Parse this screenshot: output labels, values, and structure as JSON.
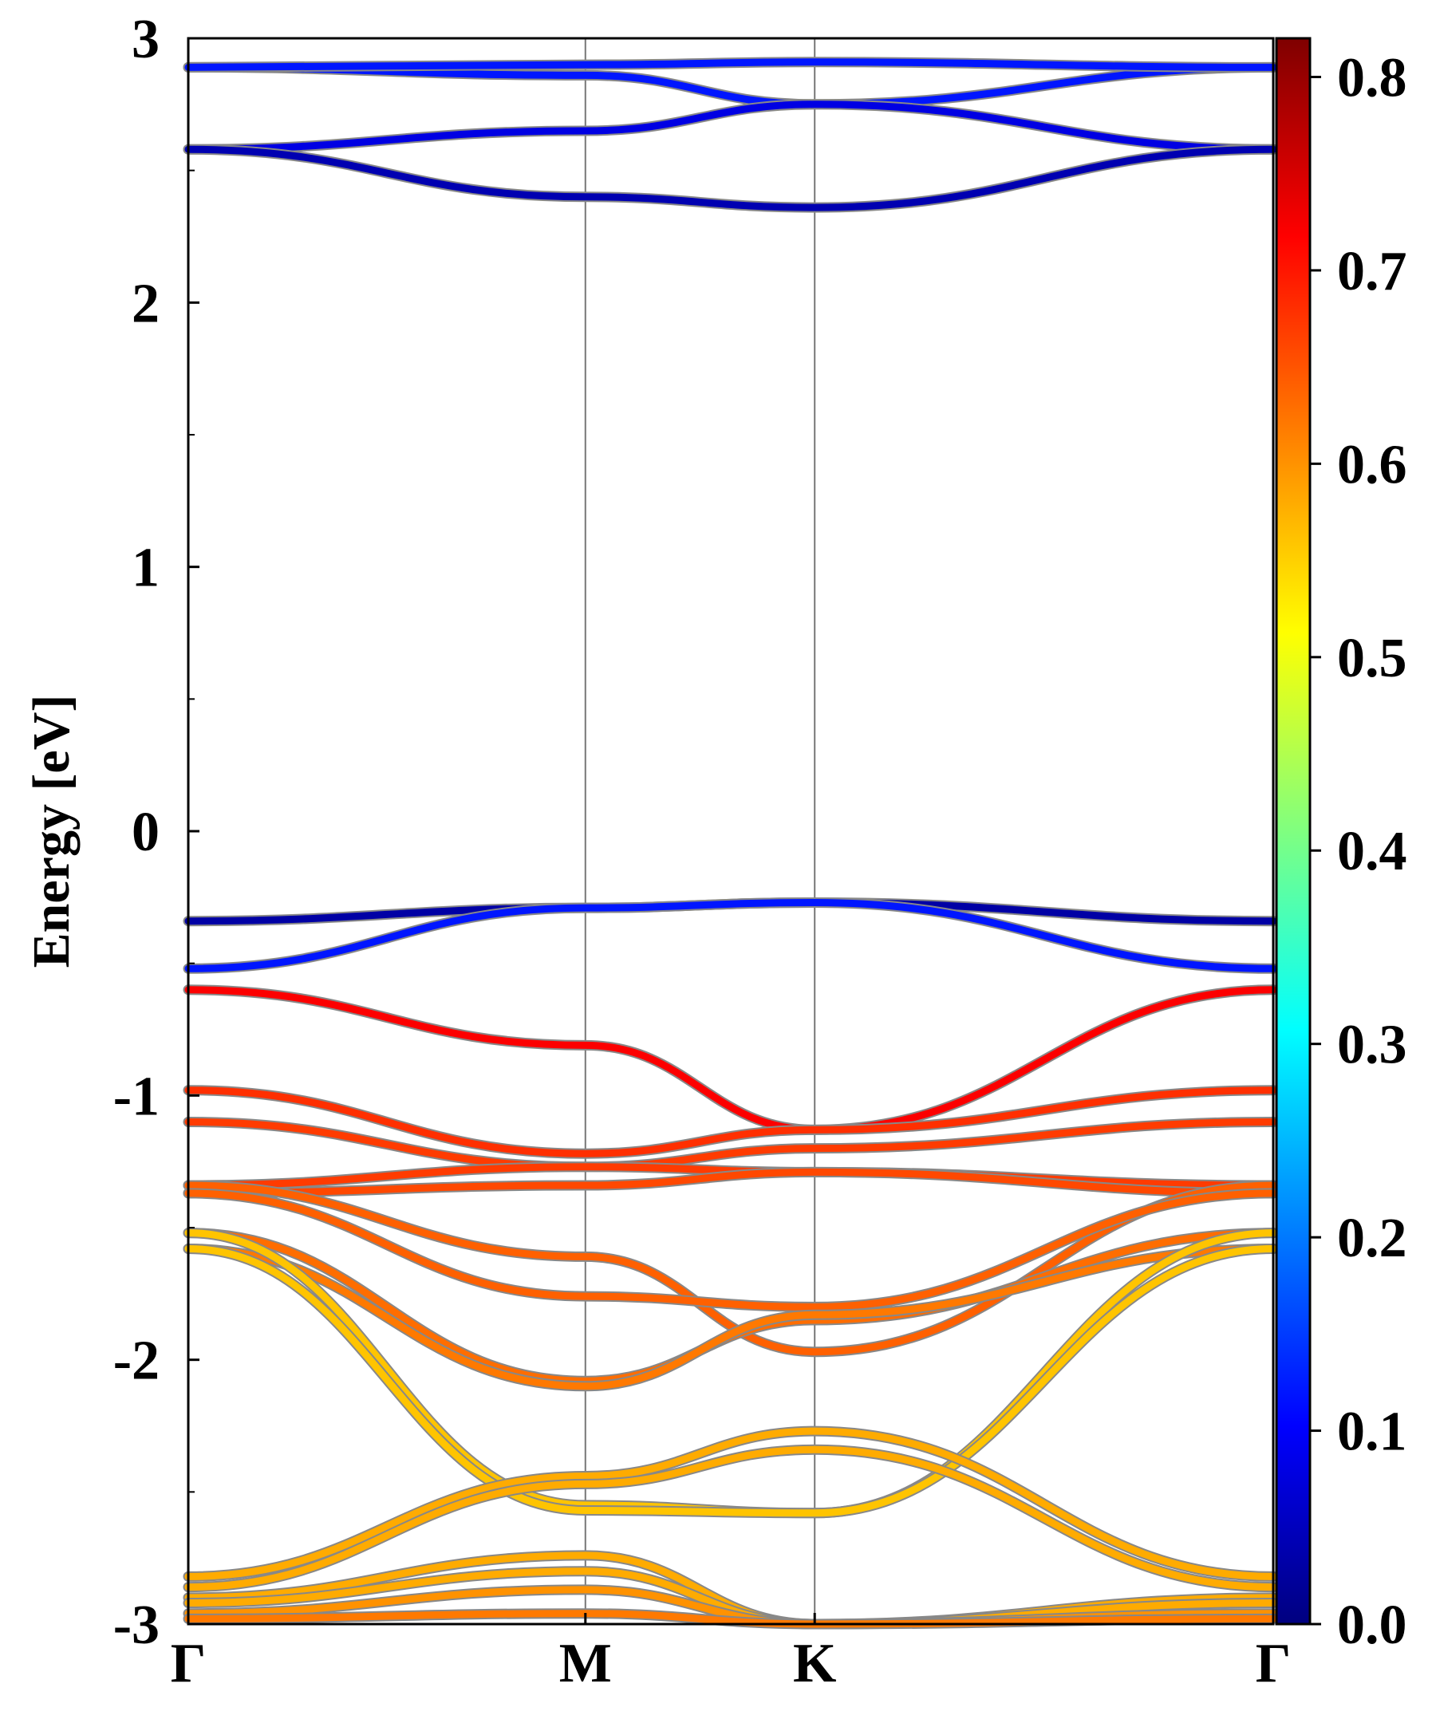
{
  "chart_data": {
    "type": "line",
    "title": "",
    "xlabel": "",
    "ylabel": "Energy [eV]",
    "ylim": [
      -3,
      3
    ],
    "y_ticks": [
      "3",
      "2",
      "1",
      "0",
      "-1",
      "-2",
      "-3"
    ],
    "y_tick_values": [
      3,
      2,
      1,
      0,
      -1,
      -2,
      -3
    ],
    "k_points": [
      {
        "label": "Γ",
        "position": 0.0
      },
      {
        "label": "M",
        "position": 1.0
      },
      {
        "label": "K",
        "position": 1.5774
      },
      {
        "label": "Γ",
        "position": 2.7321
      }
    ],
    "colorbar": {
      "range": [
        0.0,
        0.82
      ],
      "ticks": [
        "0.8",
        "0.7",
        "0.6",
        "0.5",
        "0.4",
        "0.3",
        "0.2",
        "0.1",
        "0.0"
      ],
      "tick_values": [
        0.8,
        0.7,
        0.6,
        0.5,
        0.4,
        0.3,
        0.2,
        0.1,
        0.0
      ],
      "colormap": "jet"
    },
    "series": [
      {
        "k": [
          0,
          1,
          1.5774,
          2.7321
        ],
        "energy": [
          2.89,
          2.86,
          2.75,
          2.89
        ],
        "weight": 0.12
      },
      {
        "k": [
          0,
          1,
          1.5774,
          2.7321
        ],
        "energy": [
          2.89,
          2.9,
          2.91,
          2.89
        ],
        "weight": 0.12
      },
      {
        "k": [
          0,
          1,
          1.5774,
          2.7321
        ],
        "energy": [
          2.58,
          2.65,
          2.75,
          2.58
        ],
        "weight": 0.08
      },
      {
        "k": [
          0,
          1,
          1.5774,
          2.7321
        ],
        "energy": [
          2.58,
          2.4,
          2.36,
          2.58
        ],
        "weight": 0.04
      },
      {
        "k": [
          0,
          1,
          1.5774,
          2.7321
        ],
        "energy": [
          -0.34,
          -0.29,
          -0.27,
          -0.34
        ],
        "weight": 0.03
      },
      {
        "k": [
          0,
          1,
          1.5774,
          2.7321
        ],
        "energy": [
          -0.52,
          -0.29,
          -0.27,
          -0.52
        ],
        "weight": 0.12
      },
      {
        "k": [
          0,
          1,
          1.5774,
          2.7321
        ],
        "energy": [
          -0.6,
          -0.81,
          -1.13,
          -0.6
        ],
        "weight": 0.72
      },
      {
        "k": [
          0,
          1,
          1.5774,
          2.7321
        ],
        "energy": [
          -0.98,
          -1.22,
          -1.13,
          -0.98
        ],
        "weight": 0.68
      },
      {
        "k": [
          0,
          1,
          1.5774,
          2.7321
        ],
        "energy": [
          -1.1,
          -1.27,
          -1.2,
          -1.1
        ],
        "weight": 0.67
      },
      {
        "k": [
          0,
          1,
          1.5774,
          2.7321
        ],
        "energy": [
          -1.34,
          -1.27,
          -1.29,
          -1.34
        ],
        "weight": 0.67
      },
      {
        "k": [
          0,
          1,
          1.5774,
          2.7321
        ],
        "energy": [
          -1.37,
          -1.34,
          -1.29,
          -1.37
        ],
        "weight": 0.66
      },
      {
        "k": [
          0,
          1,
          1.5774,
          2.7321
        ],
        "energy": [
          -1.34,
          -1.61,
          -1.97,
          -1.34
        ],
        "weight": 0.64
      },
      {
        "k": [
          0,
          1,
          1.5774,
          2.7321
        ],
        "energy": [
          -1.37,
          -1.76,
          -1.8,
          -1.37
        ],
        "weight": 0.64
      },
      {
        "k": [
          0,
          1,
          1.5774,
          2.7321
        ],
        "energy": [
          -1.52,
          -2.08,
          -1.85,
          -1.52
        ],
        "weight": 0.63
      },
      {
        "k": [
          0,
          1,
          1.5774,
          2.7321
        ],
        "energy": [
          -1.58,
          -2.1,
          -1.83,
          -1.58
        ],
        "weight": 0.62
      },
      {
        "k": [
          0,
          1,
          1.5774,
          2.7321
        ],
        "energy": [
          -1.52,
          -2.55,
          -2.58,
          -1.52
        ],
        "weight": 0.56
      },
      {
        "k": [
          0,
          1,
          1.5774,
          2.7321
        ],
        "energy": [
          -1.58,
          -2.57,
          -2.58,
          -1.58
        ],
        "weight": 0.56
      },
      {
        "k": [
          0,
          1,
          1.5774,
          2.7321
        ],
        "energy": [
          -2.82,
          -2.44,
          -2.27,
          -2.82
        ],
        "weight": 0.58
      },
      {
        "k": [
          0,
          1,
          1.5774,
          2.7321
        ],
        "energy": [
          -2.86,
          -2.47,
          -2.34,
          -2.86
        ],
        "weight": 0.58
      },
      {
        "k": [
          0,
          1,
          1.5774,
          2.7321
        ],
        "energy": [
          -2.9,
          -2.74,
          -3.0,
          -2.9
        ],
        "weight": 0.58
      },
      {
        "k": [
          0,
          1,
          1.5774,
          2.7321
        ],
        "energy": [
          -2.92,
          -2.8,
          -3.0,
          -2.92
        ],
        "weight": 0.58
      },
      {
        "k": [
          0,
          1,
          1.5774,
          2.7321
        ],
        "energy": [
          -2.96,
          -2.87,
          -3.0,
          -2.96
        ],
        "weight": 0.6
      },
      {
        "k": [
          0,
          1,
          1.5774,
          2.7321
        ],
        "energy": [
          -2.98,
          -2.96,
          -3.0,
          -2.98
        ],
        "weight": 0.62
      }
    ]
  }
}
